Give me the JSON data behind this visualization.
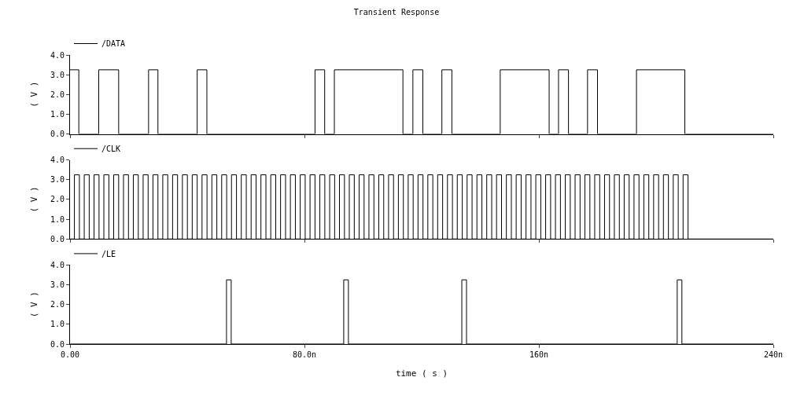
{
  "chart_data": [
    {
      "type": "step",
      "title": "Transient Response",
      "ylabel": "( V )",
      "xlim": [
        0,
        240
      ],
      "xticks": [
        {
          "value": 0,
          "label": null
        },
        {
          "value": 80,
          "label": null
        },
        {
          "value": 160,
          "label": null
        },
        {
          "value": 240,
          "label": null
        }
      ],
      "ylim": [
        0,
        4
      ],
      "yticks": [
        {
          "value": 0,
          "label": "0.0"
        },
        {
          "value": 1,
          "label": "1.0"
        },
        {
          "value": 2,
          "label": "2.0"
        },
        {
          "value": 3,
          "label": "3.0"
        },
        {
          "value": 4,
          "label": "4.0"
        }
      ],
      "tick_labels": "y",
      "legend": "top left",
      "grid": false,
      "series": [
        {
          "name": "/DATA",
          "color": "#000000",
          "x": [
            0,
            3.0,
            9.8,
            16.6,
            26.8,
            30.0,
            43.4,
            46.7,
            83.6,
            86.9,
            90.2,
            113.6,
            117.0,
            120.4,
            126.9,
            130.3,
            146.8,
            163.5,
            166.7,
            170.1,
            176.6,
            180.0,
            193.3,
            209.8,
            240
          ],
          "values": [
            3.25,
            0,
            3.25,
            0,
            3.25,
            0,
            3.25,
            0,
            3.25,
            0,
            3.25,
            0,
            3.25,
            0,
            3.25,
            0,
            3.25,
            0,
            3.25,
            0,
            3.25,
            0,
            3.25,
            0,
            0
          ]
        }
      ]
    },
    {
      "type": "step",
      "ylabel": "( V )",
      "xlim": [
        0,
        240
      ],
      "xticks": [
        {
          "value": 0,
          "label": null
        },
        {
          "value": 80,
          "label": null
        },
        {
          "value": 160,
          "label": null
        },
        {
          "value": 240,
          "label": null
        }
      ],
      "ylim": [
        0,
        4
      ],
      "yticks": [
        {
          "value": 0,
          "label": "0.0"
        },
        {
          "value": 1,
          "label": "1.0"
        },
        {
          "value": 2,
          "label": "2.0"
        },
        {
          "value": 3,
          "label": "3.0"
        },
        {
          "value": 4,
          "label": "4.0"
        }
      ],
      "tick_labels": "y",
      "legend": "top left",
      "grid": false,
      "series": [
        {
          "name": "/CLK",
          "color": "#000000",
          "x": [
            0,
            1.5,
            3.2,
            4.85,
            6.55,
            8.2,
            9.9,
            11.55,
            13.25,
            14.9,
            16.6,
            18.25,
            19.95,
            21.6,
            23.3,
            24.95,
            26.65,
            28.3,
            30,
            31.65,
            33.35,
            35,
            36.7,
            38.35,
            40.05,
            41.7,
            43.4,
            45.05,
            46.75,
            48.4,
            50.1,
            51.75,
            53.45,
            55.1,
            56.8,
            58.45,
            60.15,
            61.8,
            63.5,
            65.15,
            66.85,
            68.5,
            70.2,
            71.85,
            73.55,
            75.2,
            76.9,
            78.55,
            80.25,
            81.9,
            83.6,
            85.25,
            86.95,
            88.6,
            90.3,
            91.95,
            93.65,
            95.3,
            97,
            98.65,
            100.35,
            102,
            103.7,
            105.35,
            107.05,
            108.7,
            110.4,
            112.05,
            113.75,
            115.4,
            117.1,
            118.75,
            120.45,
            122.1,
            123.8,
            125.45,
            127.15,
            128.8,
            130.5,
            132.15,
            133.85,
            135.5,
            137.2,
            138.85,
            140.55,
            142.2,
            143.9,
            145.55,
            147.25,
            148.9,
            150.6,
            152.25,
            153.95,
            155.6,
            157.3,
            158.95,
            160.65,
            162.3,
            164,
            165.65,
            167.35,
            169,
            170.7,
            172.35,
            174.05,
            175.7,
            177.4,
            179.05,
            180.75,
            182.4,
            184.1,
            185.75,
            187.45,
            189.1,
            190.8,
            192.45,
            194.15,
            195.8,
            197.5,
            199.15,
            200.85,
            202.5,
            204.2,
            205.85,
            207.55,
            209.2,
            210.9,
            240
          ],
          "values": [
            0,
            3.25,
            0,
            3.25,
            0,
            3.25,
            0,
            3.25,
            0,
            3.25,
            0,
            3.25,
            0,
            3.25,
            0,
            3.25,
            0,
            3.25,
            0,
            3.25,
            0,
            3.25,
            0,
            3.25,
            0,
            3.25,
            0,
            3.25,
            0,
            3.25,
            0,
            3.25,
            0,
            3.25,
            0,
            3.25,
            0,
            3.25,
            0,
            3.25,
            0,
            3.25,
            0,
            3.25,
            0,
            3.25,
            0,
            3.25,
            0,
            3.25,
            0,
            3.25,
            0,
            3.25,
            0,
            3.25,
            0,
            3.25,
            0,
            3.25,
            0,
            3.25,
            0,
            3.25,
            0,
            3.25,
            0,
            3.25,
            0,
            3.25,
            0,
            3.25,
            0,
            3.25,
            0,
            3.25,
            0,
            3.25,
            0,
            3.25,
            0,
            3.25,
            0,
            3.25,
            0,
            3.25,
            0,
            3.25,
            0,
            3.25,
            0,
            3.25,
            0,
            3.25,
            0,
            3.25,
            0,
            3.25,
            0,
            3.25,
            0,
            3.25,
            0,
            3.25,
            0,
            3.25,
            0,
            3.25,
            0,
            3.25,
            0,
            3.25,
            0,
            3.25,
            0,
            3.25,
            0,
            3.25,
            0,
            3.25,
            0,
            3.25,
            0,
            3.25,
            0,
            3.25,
            0,
            0
          ]
        }
      ]
    },
    {
      "type": "step",
      "xlabel": "time ( s )",
      "ylabel": "( V )",
      "xlim": [
        0,
        240
      ],
      "xticks": [
        {
          "value": 0,
          "label": "0.00"
        },
        {
          "value": 80,
          "label": "80.0n"
        },
        {
          "value": 160,
          "label": "160n"
        },
        {
          "value": 240,
          "label": "240n"
        }
      ],
      "ylim": [
        0,
        4
      ],
      "yticks": [
        {
          "value": 0,
          "label": "0.0"
        },
        {
          "value": 1,
          "label": "1.0"
        },
        {
          "value": 2,
          "label": "2.0"
        },
        {
          "value": 3,
          "label": "3.0"
        },
        {
          "value": 4,
          "label": "4.0"
        }
      ],
      "legend": "top left",
      "grid": false,
      "series": [
        {
          "name": "/LE",
          "color": "#000000",
          "x": [
            0,
            53.4,
            55.0,
            93.4,
            95.0,
            133.7,
            135.3,
            207.2,
            208.8,
            240
          ],
          "values": [
            0,
            3.25,
            0,
            3.25,
            0,
            3.25,
            0,
            3.25,
            0,
            0
          ]
        }
      ]
    }
  ]
}
